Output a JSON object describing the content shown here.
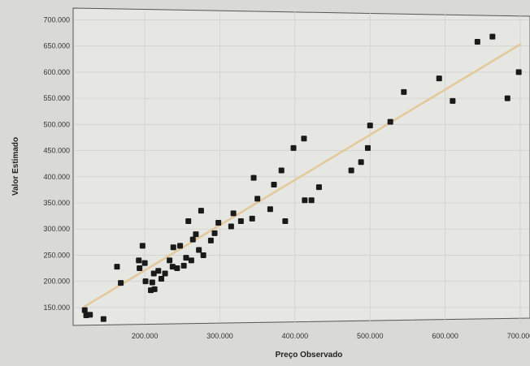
{
  "chart_data": {
    "type": "scatter",
    "title": "",
    "xlabel": "Preço Observado",
    "ylabel": "Valor Estimado",
    "xlim": [
      110000,
      700000
    ],
    "ylim": [
      125000,
      710000
    ],
    "grid": true,
    "x_ticks": [
      "200.000",
      "300.000",
      "400.000",
      "500.000",
      "600.000",
      "700.000"
    ],
    "x_tick_values": [
      200000,
      300000,
      400000,
      500000,
      600000,
      700000
    ],
    "y_ticks": [
      "150.000",
      "200.000",
      "250.000",
      "300.000",
      "350.000",
      "400.000",
      "450.000",
      "500.000",
      "550.000",
      "600.000",
      "650.000",
      "700.000"
    ],
    "y_tick_values": [
      150000,
      200000,
      250000,
      300000,
      350000,
      400000,
      450000,
      500000,
      550000,
      600000,
      650000,
      700000
    ],
    "trendline": {
      "x": [
        120000,
        700000
      ],
      "y": [
        152000,
        653000
      ]
    },
    "colors": {
      "points": "#1a1a1a",
      "trendline": "#e3c99a",
      "plot_background": "#e6e6e3"
    },
    "points": [
      {
        "x": 120000,
        "y": 145000
      },
      {
        "x": 122000,
        "y": 135000
      },
      {
        "x": 127000,
        "y": 136000
      },
      {
        "x": 145000,
        "y": 128000
      },
      {
        "x": 163000,
        "y": 228000
      },
      {
        "x": 168000,
        "y": 197000
      },
      {
        "x": 192000,
        "y": 240000
      },
      {
        "x": 193000,
        "y": 225000
      },
      {
        "x": 197000,
        "y": 268000
      },
      {
        "x": 200000,
        "y": 235000
      },
      {
        "x": 201000,
        "y": 200000
      },
      {
        "x": 208000,
        "y": 183000
      },
      {
        "x": 210000,
        "y": 198000
      },
      {
        "x": 212000,
        "y": 215000
      },
      {
        "x": 213000,
        "y": 185000
      },
      {
        "x": 218000,
        "y": 220000
      },
      {
        "x": 222000,
        "y": 205000
      },
      {
        "x": 227000,
        "y": 215000
      },
      {
        "x": 233000,
        "y": 240000
      },
      {
        "x": 237000,
        "y": 228000
      },
      {
        "x": 238000,
        "y": 265000
      },
      {
        "x": 243000,
        "y": 225000
      },
      {
        "x": 247000,
        "y": 268000
      },
      {
        "x": 252000,
        "y": 230000
      },
      {
        "x": 255000,
        "y": 245000
      },
      {
        "x": 258000,
        "y": 315000
      },
      {
        "x": 262000,
        "y": 240000
      },
      {
        "x": 264000,
        "y": 280000
      },
      {
        "x": 268000,
        "y": 290000
      },
      {
        "x": 272000,
        "y": 260000
      },
      {
        "x": 275000,
        "y": 335000
      },
      {
        "x": 278000,
        "y": 250000
      },
      {
        "x": 288000,
        "y": 278000
      },
      {
        "x": 293000,
        "y": 292000
      },
      {
        "x": 298000,
        "y": 312000
      },
      {
        "x": 315000,
        "y": 305000
      },
      {
        "x": 318000,
        "y": 330000
      },
      {
        "x": 328000,
        "y": 315000
      },
      {
        "x": 343000,
        "y": 320000
      },
      {
        "x": 345000,
        "y": 398000
      },
      {
        "x": 350000,
        "y": 358000
      },
      {
        "x": 367000,
        "y": 338000
      },
      {
        "x": 372000,
        "y": 385000
      },
      {
        "x": 382000,
        "y": 412000
      },
      {
        "x": 387000,
        "y": 315000
      },
      {
        "x": 398000,
        "y": 455000
      },
      {
        "x": 412000,
        "y": 473000
      },
      {
        "x": 413000,
        "y": 355000
      },
      {
        "x": 422000,
        "y": 355000
      },
      {
        "x": 432000,
        "y": 380000
      },
      {
        "x": 475000,
        "y": 412000
      },
      {
        "x": 488000,
        "y": 428000
      },
      {
        "x": 497000,
        "y": 455000
      },
      {
        "x": 500000,
        "y": 498000
      },
      {
        "x": 527000,
        "y": 505000
      },
      {
        "x": 545000,
        "y": 562000
      },
      {
        "x": 592000,
        "y": 588000
      },
      {
        "x": 610000,
        "y": 545000
      },
      {
        "x": 643000,
        "y": 658000
      },
      {
        "x": 663000,
        "y": 668000
      },
      {
        "x": 683000,
        "y": 550000
      },
      {
        "x": 698000,
        "y": 600000
      }
    ]
  }
}
